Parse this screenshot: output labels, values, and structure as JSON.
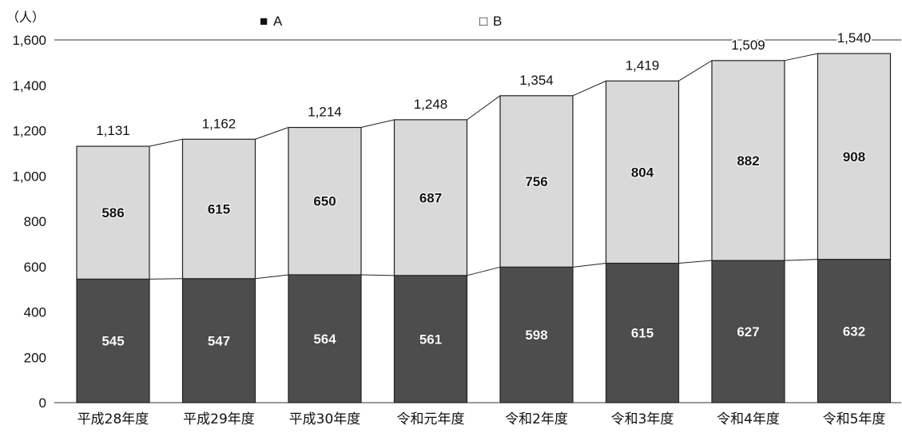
{
  "chart_data": {
    "type": "bar",
    "stacked": true,
    "unit_label": "（人）",
    "categories": [
      "平成28年度",
      "平成29年度",
      "平成30年度",
      "令和元年度",
      "令和2年度",
      "令和3年度",
      "令和4年度",
      "令和5年度"
    ],
    "series": [
      {
        "name": "A",
        "values": [
          545,
          547,
          564,
          561,
          598,
          615,
          627,
          632
        ]
      },
      {
        "name": "B",
        "values": [
          586,
          615,
          650,
          687,
          756,
          804,
          882,
          908
        ]
      }
    ],
    "totals": [
      "1,131",
      "1,162",
      "1,214",
      "1,248",
      "1,354",
      "1,419",
      "1,509",
      "1,540"
    ],
    "a_labels": [
      "545",
      "547",
      "564",
      "561",
      "598",
      "615",
      "627",
      "632"
    ],
    "b_labels": [
      "586",
      "615",
      "650",
      "687",
      "756",
      "804",
      "882",
      "908"
    ],
    "y_ticks": [
      "0",
      "200",
      "400",
      "600",
      "800",
      "1,000",
      "1,200",
      "1,400",
      "1,600"
    ],
    "ylim": [
      0,
      1600
    ],
    "legend": [
      {
        "symbol": "■",
        "label": "A"
      },
      {
        "symbol": "□",
        "label": "B"
      }
    ],
    "legend_position": "top",
    "grid": false,
    "colors": {
      "A": "#4d4d4d",
      "B": "#d9d9d9",
      "outline": "#222222",
      "connector": "#222222"
    }
  }
}
